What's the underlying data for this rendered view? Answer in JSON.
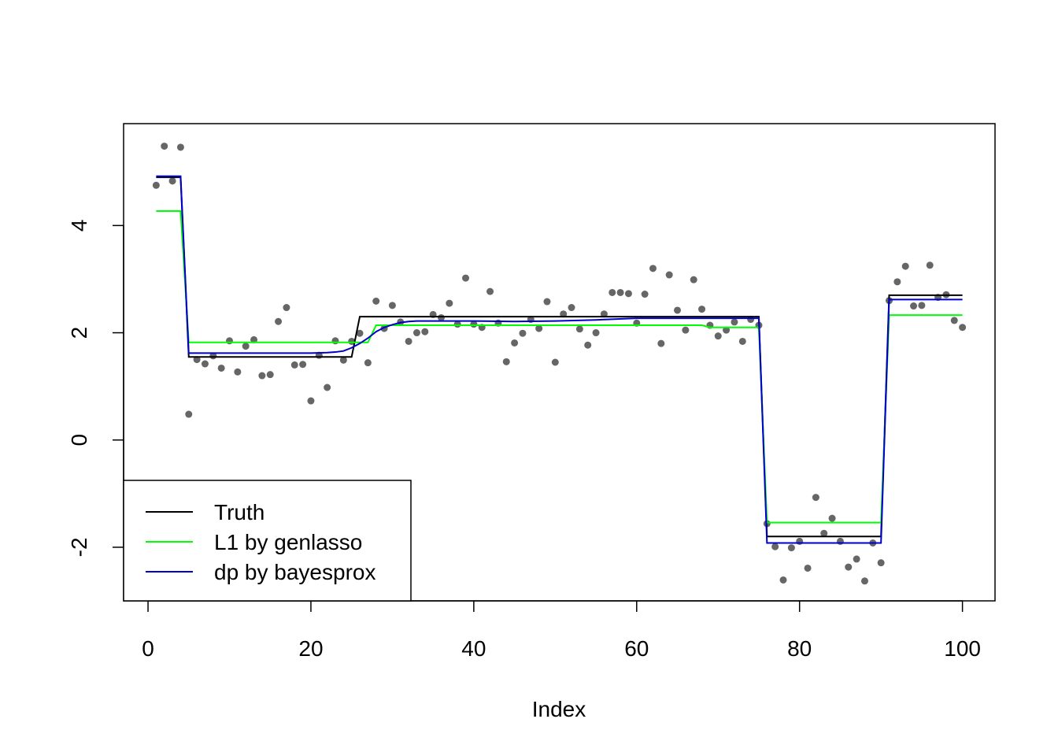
{
  "chart_data": {
    "type": "line",
    "title": "",
    "xlabel": "Index",
    "ylabel": "",
    "xlim": [
      -3,
      104
    ],
    "ylim": [
      -3,
      5.9
    ],
    "x_ticks": [
      0,
      20,
      40,
      60,
      80,
      100
    ],
    "y_ticks": [
      -2,
      0,
      2,
      4
    ],
    "grid": false,
    "legend_position": "bottom-left",
    "points": {
      "color": "#666666",
      "x": [
        1,
        2,
        3,
        4,
        5,
        6,
        7,
        8,
        9,
        10,
        11,
        12,
        13,
        14,
        15,
        16,
        17,
        18,
        19,
        20,
        21,
        22,
        23,
        24,
        25,
        26,
        27,
        28,
        29,
        30,
        31,
        32,
        33,
        34,
        35,
        36,
        37,
        38,
        39,
        40,
        41,
        42,
        43,
        44,
        45,
        46,
        47,
        48,
        49,
        50,
        51,
        52,
        53,
        54,
        55,
        56,
        57,
        58,
        59,
        60,
        61,
        62,
        63,
        64,
        65,
        66,
        67,
        68,
        69,
        70,
        71,
        72,
        73,
        74,
        75,
        76,
        77,
        78,
        79,
        80,
        81,
        82,
        83,
        84,
        85,
        86,
        87,
        88,
        89,
        90,
        91,
        92,
        93,
        94,
        95,
        96,
        97,
        98,
        99,
        100
      ],
      "y": [
        4.75,
        5.48,
        4.83,
        5.46,
        0.48,
        1.5,
        1.42,
        1.57,
        1.34,
        1.85,
        1.27,
        1.75,
        1.87,
        1.2,
        1.22,
        2.21,
        2.47,
        1.4,
        1.41,
        0.73,
        1.58,
        0.98,
        1.85,
        1.49,
        1.84,
        1.99,
        1.44,
        2.59,
        2.08,
        2.51,
        2.2,
        1.84,
        2.0,
        2.02,
        2.34,
        2.28,
        2.55,
        2.16,
        3.02,
        2.16,
        2.1,
        2.77,
        2.18,
        1.46,
        1.81,
        1.99,
        2.25,
        2.08,
        2.58,
        1.45,
        2.35,
        2.47,
        2.07,
        1.77,
        2.0,
        2.35,
        2.75,
        2.75,
        2.73,
        2.18,
        2.72,
        3.2,
        1.8,
        3.08,
        2.42,
        2.05,
        2.99,
        2.44,
        2.14,
        1.94,
        2.05,
        2.2,
        1.84,
        2.25,
        2.14,
        -1.56,
        -1.99,
        -2.61,
        -2.01,
        -1.89,
        -2.39,
        -1.07,
        -1.74,
        -1.46,
        -1.89,
        -2.37,
        -2.22,
        -2.63,
        -1.92,
        -2.29,
        2.6,
        2.95,
        3.24,
        2.5,
        2.51,
        3.26,
        2.66,
        2.71,
        2.23,
        2.1
      ]
    },
    "series": [
      {
        "name": "Truth",
        "color": "#000000",
        "step": true,
        "x": [
          1,
          4,
          5,
          25,
          26,
          75,
          76,
          90,
          91,
          100
        ],
        "y": [
          4.9,
          4.9,
          1.55,
          1.55,
          2.3,
          2.3,
          -1.8,
          -1.8,
          2.7,
          2.7
        ]
      },
      {
        "name": "L1 by genlasso",
        "color": "#00ff00",
        "step": true,
        "x": [
          1,
          4,
          5,
          27,
          28,
          68,
          69,
          75,
          76,
          90,
          91,
          100
        ],
        "y": [
          4.27,
          4.27,
          1.82,
          1.82,
          2.14,
          2.14,
          2.1,
          2.1,
          -1.54,
          -1.54,
          2.33,
          2.33
        ]
      },
      {
        "name": "dp by bayesprox",
        "color": "#0000cc",
        "step": false,
        "x": [
          1,
          4,
          5,
          10,
          15,
          20,
          22,
          23,
          24,
          25,
          26,
          27,
          28,
          29,
          30,
          31,
          32,
          33,
          35,
          40,
          45,
          50,
          55,
          60,
          65,
          70,
          75,
          76,
          90,
          91,
          100
        ],
        "y": [
          4.92,
          4.92,
          1.62,
          1.62,
          1.62,
          1.62,
          1.63,
          1.64,
          1.66,
          1.72,
          1.8,
          1.9,
          2.02,
          2.1,
          2.15,
          2.19,
          2.21,
          2.22,
          2.22,
          2.22,
          2.21,
          2.22,
          2.24,
          2.27,
          2.27,
          2.27,
          2.27,
          -1.92,
          -1.92,
          2.62,
          2.62
        ]
      }
    ]
  }
}
